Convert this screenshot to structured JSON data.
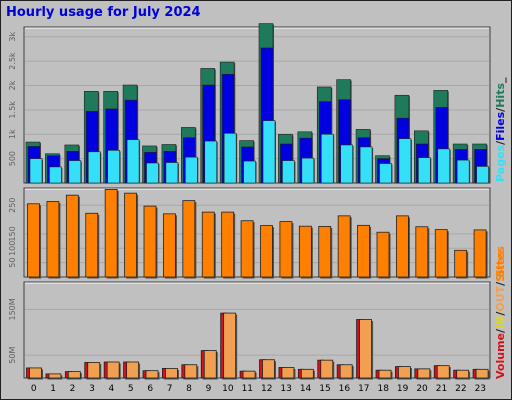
{
  "chart_title": "Hourly usage for July 2024",
  "colors": {
    "background": "#c0c0c0",
    "hits": "#1f7a5c",
    "files": "#0000e0",
    "pages": "#34e0f8",
    "sites": "#ff8000",
    "volume": "#d8101a",
    "in": "#f0a050",
    "out": "#e8d060",
    "title": "#0000d8"
  },
  "chart_data": [
    {
      "type": "bar",
      "panel": "hits-files-pages",
      "categories": [
        "0",
        "1",
        "2",
        "3",
        "4",
        "5",
        "6",
        "7",
        "8",
        "9",
        "10",
        "11",
        "12",
        "13",
        "14",
        "15",
        "16",
        "17",
        "18",
        "19",
        "20",
        "21",
        "22",
        "23"
      ],
      "y_ticks": [
        "500",
        "1k",
        "1.5k",
        "2k",
        "2.5k",
        "3k"
      ],
      "y_tick_values": [
        500,
        1000,
        1500,
        2000,
        2500,
        3000
      ],
      "ylim": [
        0,
        3200
      ],
      "legend_side": "right",
      "legend_labels": [
        "Pages",
        "/",
        "Files",
        "/",
        "Hits",
        "_"
      ],
      "series": [
        {
          "name": "Hits",
          "values": [
            840,
            600,
            780,
            1880,
            1880,
            2010,
            760,
            790,
            1140,
            2350,
            2480,
            870,
            3270,
            1000,
            1050,
            1970,
            2120,
            1100,
            560,
            1800,
            1070,
            1900,
            800,
            800
          ]
        },
        {
          "name": "Files",
          "values": [
            750,
            560,
            650,
            1470,
            1520,
            1700,
            630,
            650,
            930,
            2010,
            2230,
            740,
            2770,
            800,
            920,
            1670,
            1710,
            930,
            500,
            1330,
            800,
            1550,
            690,
            690
          ]
        },
        {
          "name": "Pages",
          "values": [
            500,
            330,
            460,
            640,
            670,
            890,
            410,
            420,
            530,
            860,
            1020,
            450,
            1280,
            460,
            510,
            1000,
            780,
            740,
            400,
            910,
            520,
            700,
            470,
            340
          ]
        }
      ]
    },
    {
      "type": "bar",
      "panel": "sites",
      "categories": [
        "0",
        "1",
        "2",
        "3",
        "4",
        "5",
        "6",
        "7",
        "8",
        "9",
        "10",
        "11",
        "12",
        "13",
        "14",
        "15",
        "16",
        "17",
        "18",
        "19",
        "20",
        "21",
        "22",
        "23"
      ],
      "y_ticks": [
        "50",
        "100",
        "150",
        "250"
      ],
      "y_tick_values": [
        50,
        100,
        150,
        250
      ],
      "ylim": [
        0,
        310
      ],
      "legend_side": "right",
      "legend_labels": [
        "Sites"
      ],
      "series": [
        {
          "name": "Sites",
          "values": [
            255,
            263,
            285,
            222,
            305,
            292,
            247,
            220,
            266,
            226,
            226,
            196,
            179,
            193,
            177,
            176,
            213,
            180,
            156,
            213,
            175,
            165,
            93,
            164
          ]
        }
      ]
    },
    {
      "type": "bar",
      "panel": "volume",
      "categories": [
        "0",
        "1",
        "2",
        "3",
        "4",
        "5",
        "6",
        "7",
        "8",
        "9",
        "10",
        "11",
        "12",
        "13",
        "14",
        "15",
        "16",
        "17",
        "18",
        "19",
        "20",
        "21",
        "22",
        "23"
      ],
      "y_ticks": [
        "50M",
        "150M"
      ],
      "y_tick_values": [
        50,
        150
      ],
      "ylim": [
        0,
        210
      ],
      "legend_side": "right",
      "legend_labels": [
        "Volume",
        "/",
        "IN",
        "/",
        "OUT",
        "/",
        "Sites"
      ],
      "x_tick_labels": [
        "0",
        "1",
        "2",
        "3",
        "4",
        "5",
        "6",
        "7",
        "8",
        "9",
        "10",
        "11",
        "12",
        "13",
        "14",
        "15",
        "16",
        "17",
        "18",
        "19",
        "20",
        "21",
        "22",
        "23"
      ],
      "series": [
        {
          "name": "Volume",
          "values": [
            22,
            9,
            14,
            34,
            35,
            35,
            16,
            21,
            29,
            60,
            142,
            15,
            40,
            23,
            19,
            39,
            29,
            128,
            17,
            25,
            20,
            27,
            17,
            19
          ]
        },
        {
          "name": "IN",
          "values": [
            22,
            9,
            14,
            34,
            35,
            35,
            16,
            21,
            29,
            60,
            142,
            15,
            40,
            23,
            19,
            39,
            29,
            128,
            17,
            25,
            20,
            27,
            17,
            19
          ]
        }
      ]
    }
  ]
}
